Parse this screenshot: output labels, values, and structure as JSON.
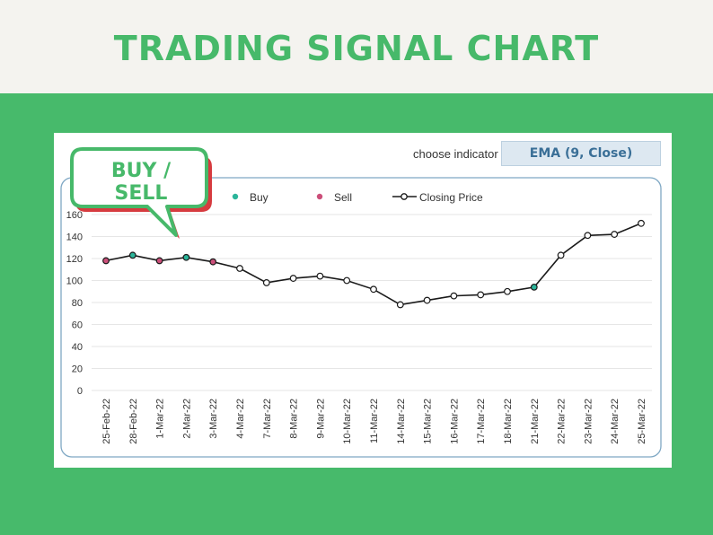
{
  "header": {
    "title": "TRADING SIGNAL CHART"
  },
  "indicator": {
    "label": "choose indicator",
    "selected": "EMA (9, Close)"
  },
  "callout": {
    "line1": "BUY /",
    "line2": "SELL"
  },
  "colors": {
    "accent_green": "#47b96a",
    "buy": "#2bb59a",
    "sell": "#cc4f7a",
    "line": "#1a1a1a",
    "frame": "#7fa8c4"
  },
  "chart_data": {
    "type": "line",
    "title": "",
    "xlabel": "",
    "ylabel": "",
    "ylim": [
      0,
      160
    ],
    "yticks": [
      0,
      20,
      40,
      60,
      80,
      100,
      120,
      140,
      160
    ],
    "legend": {
      "position": "top",
      "entries": [
        {
          "name": "Buy",
          "marker": "dot",
          "color": "#2bb59a"
        },
        {
          "name": "Sell",
          "marker": "dot",
          "color": "#cc4f7a"
        },
        {
          "name": "Closing Price",
          "marker": "line-circle",
          "color": "#1a1a1a"
        }
      ]
    },
    "categories": [
      "25-Feb-22",
      "28-Feb-22",
      "1-Mar-22",
      "2-Mar-22",
      "3-Mar-22",
      "4-Mar-22",
      "7-Mar-22",
      "8-Mar-22",
      "9-Mar-22",
      "10-Mar-22",
      "11-Mar-22",
      "14-Mar-22",
      "15-Mar-22",
      "16-Mar-22",
      "17-Mar-22",
      "18-Mar-22",
      "21-Mar-22",
      "22-Mar-22",
      "23-Mar-22",
      "24-Mar-22",
      "25-Mar-22"
    ],
    "series": [
      {
        "name": "Closing Price",
        "values": [
          118,
          123,
          118,
          121,
          117,
          111,
          98,
          102,
          104,
          100,
          92,
          78,
          82,
          86,
          87,
          90,
          94,
          123,
          141,
          142,
          152
        ]
      }
    ],
    "signals": {
      "Buy": [
        "28-Feb-22",
        "2-Mar-22",
        "21-Mar-22"
      ],
      "Sell": [
        "25-Feb-22",
        "1-Mar-22",
        "3-Mar-22"
      ]
    },
    "grid": true
  }
}
